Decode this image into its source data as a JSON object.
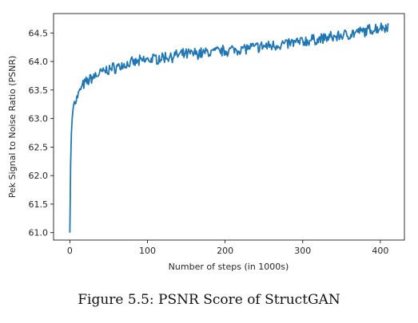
{
  "chart_data": {
    "type": "line",
    "title": "",
    "xlabel": "Number of steps (in 1000s)",
    "ylabel": "Pek Signal to Noise Ratio (PSNR)",
    "xlim": [
      -21,
      431
    ],
    "ylim": [
      60.87,
      64.84
    ],
    "xticks": [
      0,
      100,
      200,
      300,
      400
    ],
    "yticks": [
      61.0,
      61.5,
      62.0,
      62.5,
      63.0,
      63.5,
      64.0,
      64.5
    ],
    "ytick_labels": [
      "61.0",
      "61.5",
      "62.0",
      "62.5",
      "63.0",
      "63.5",
      "64.0",
      "64.5"
    ],
    "line_color": "#1f77b4",
    "grid": false,
    "series": [
      {
        "x": [
          0,
          1,
          2,
          3,
          4,
          5,
          6,
          8,
          10,
          12,
          15,
          20,
          25,
          30,
          40,
          50,
          60,
          70,
          80,
          90,
          100,
          120,
          140,
          160,
          180,
          200,
          220,
          240,
          260,
          280,
          300,
          320,
          340,
          360,
          380,
          400,
          410
        ],
        "values": [
          61.0,
          62.2,
          62.75,
          63.0,
          63.15,
          63.25,
          63.3,
          63.33,
          63.38,
          63.45,
          63.55,
          63.62,
          63.68,
          63.73,
          63.8,
          63.86,
          63.9,
          63.94,
          63.97,
          64.0,
          64.03,
          64.07,
          64.11,
          64.14,
          64.16,
          64.19,
          64.22,
          64.25,
          64.28,
          64.31,
          64.35,
          64.39,
          64.43,
          64.48,
          64.53,
          64.6,
          64.62
        ]
      }
    ]
  },
  "caption": "Figure 5.5: PSNR Score of StructGAN"
}
